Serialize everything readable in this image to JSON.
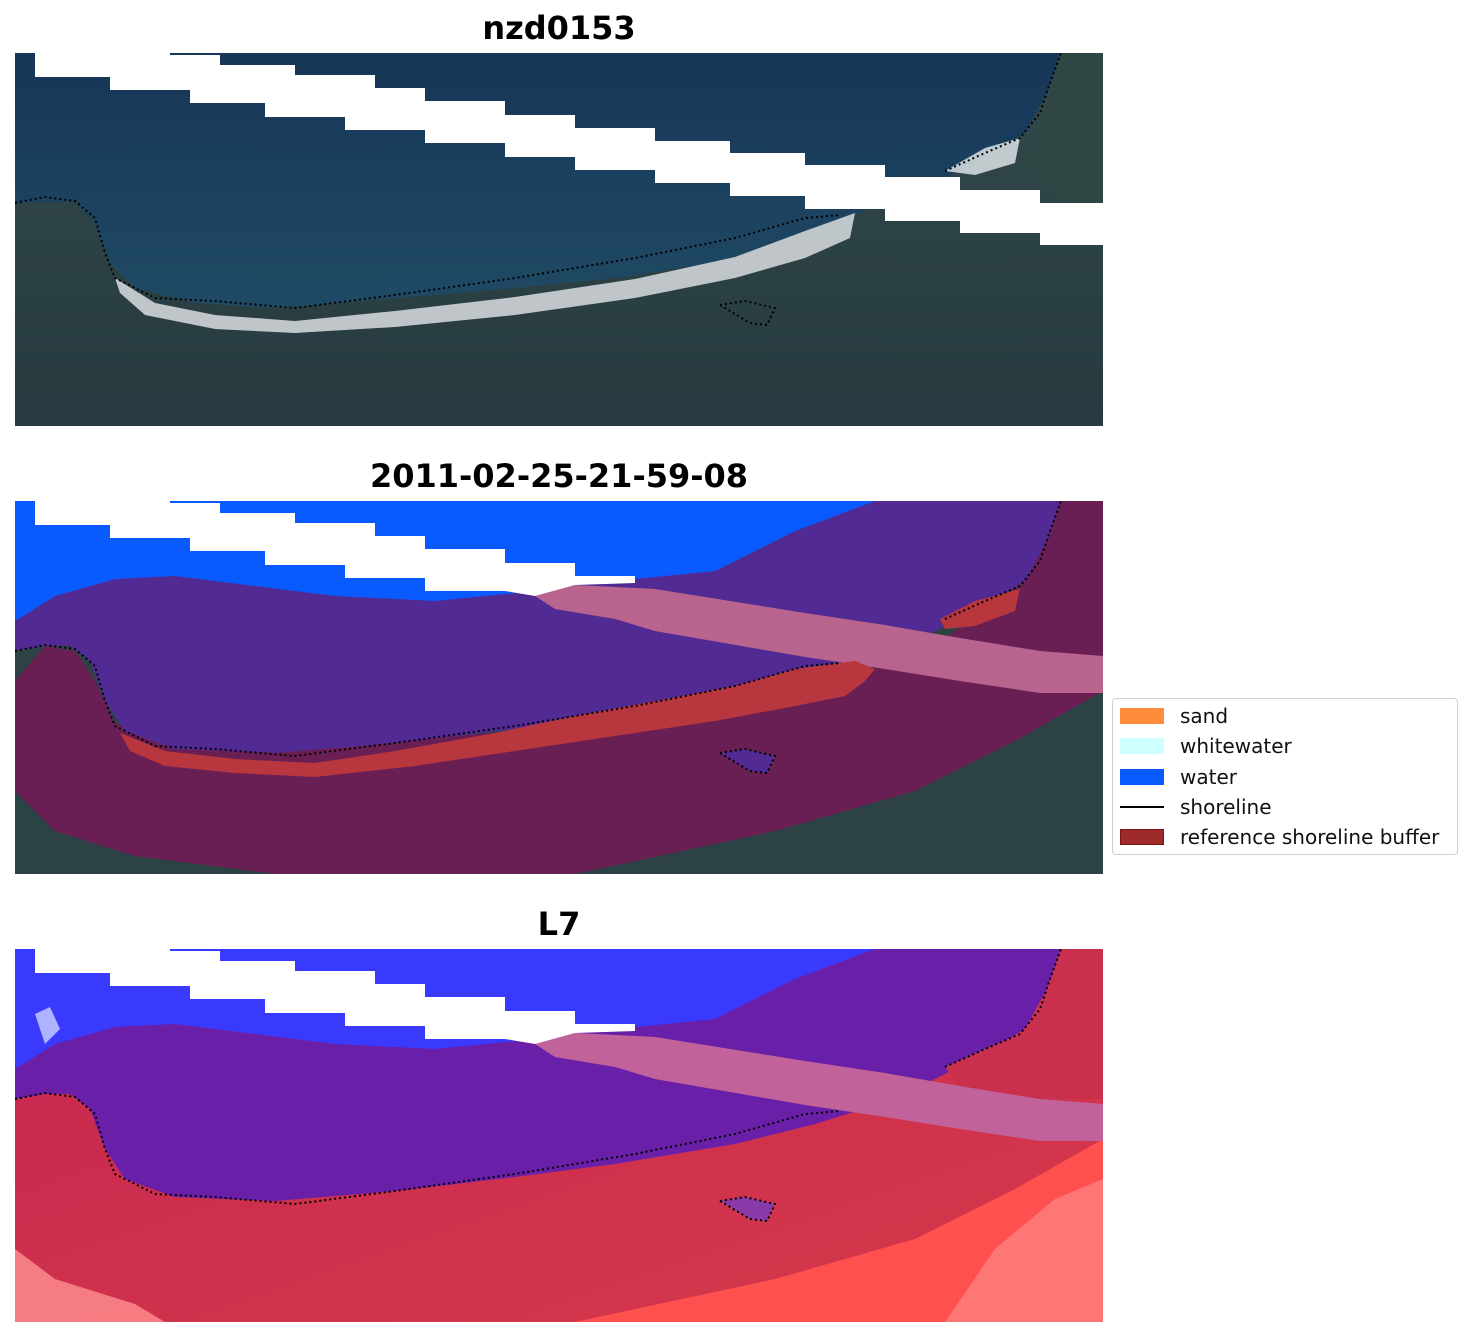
{
  "panels": [
    {
      "title": "nzd0153"
    },
    {
      "title": "2011-02-25-21-59-08"
    },
    {
      "title": "L7"
    }
  ],
  "legend": {
    "items": [
      {
        "label": "sand",
        "color": "#ff8c3a",
        "kind": "patch"
      },
      {
        "label": "whitewater",
        "color": "#cfffff",
        "kind": "patch"
      },
      {
        "label": "water",
        "color": "#0a5bff",
        "kind": "patch"
      },
      {
        "label": "shoreline",
        "color": "#000000",
        "kind": "line"
      },
      {
        "label": "reference shoreline buffer",
        "color": "#9e2a2a",
        "kind": "patch"
      }
    ]
  },
  "colors": {
    "ocean": "#1b3c5e",
    "land": "#2c4245",
    "beach": "#d8dde0",
    "water_class": "#0a5bff",
    "buffer": "#6e1d55",
    "buffer_over_water": "#512a94",
    "buffer_over_scanline": "#b8648e",
    "sand_in_buffer": "#b8363d",
    "ndwi_water": "#3a3aff",
    "ndwi_land": "#c62650",
    "ndwi_bright": "#ff4b4b"
  }
}
